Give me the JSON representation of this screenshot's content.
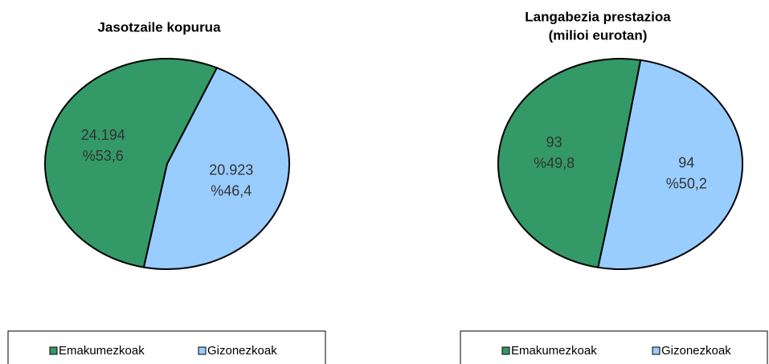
{
  "chart_data": [
    {
      "type": "pie",
      "title": [
        "Jasotzaile kopurua"
      ],
      "categories": [
        "Emakumezkoak",
        "Gizonezkoak"
      ],
      "values": [
        24194,
        20923
      ],
      "value_labels": [
        "24.194",
        "20.923"
      ],
      "percents": [
        53.6,
        46.4
      ],
      "percent_labels": [
        "%53,6",
        "%46,4"
      ],
      "colors": [
        "#339966",
        "#99ccff"
      ],
      "legend": "bottom"
    },
    {
      "type": "pie",
      "title": [
        "Langabezia prestazioa",
        "(milioi eurotan)"
      ],
      "categories": [
        "Emakumezkoak",
        "Gizonezkoak"
      ],
      "values": [
        93,
        94
      ],
      "percents": [
        49.8,
        50.2
      ],
      "percent_labels": [
        "%49,8",
        "%50,2"
      ],
      "colors": [
        "#339966",
        "#99ccff"
      ],
      "legend": "bottom"
    }
  ]
}
